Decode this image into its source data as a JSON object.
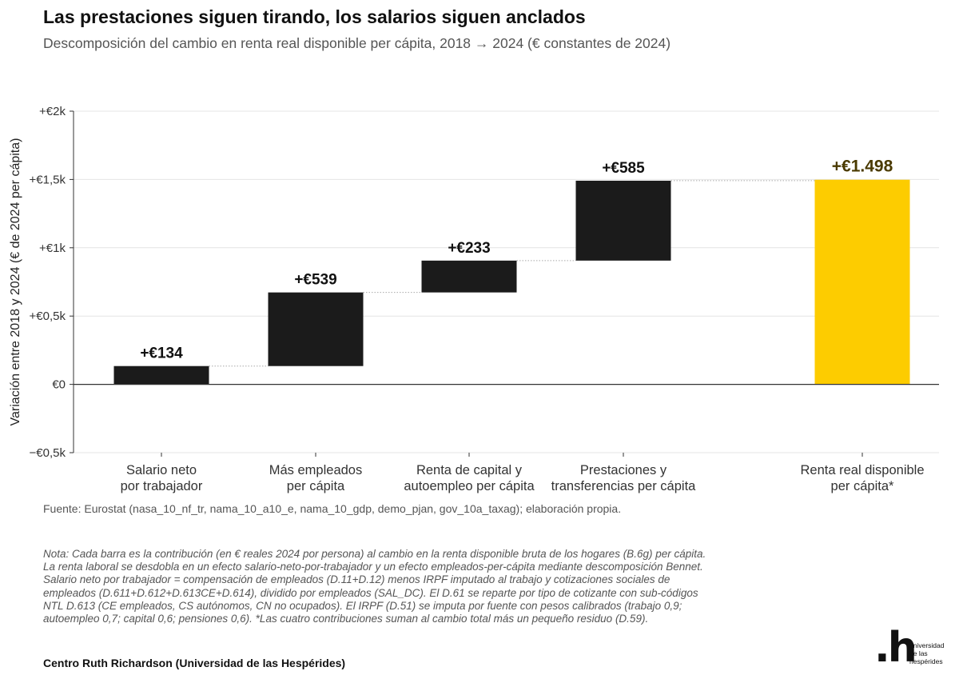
{
  "title": "Las prestaciones siguen tirando, los salarios siguen anclados",
  "subtitle": "Descomposición del cambio en renta real disponible per cápita, 2018 → 2024 (€ constantes de 2024)",
  "source": "Fuente: Eurostat (nasa_10_nf_tr, nama_10_a10_e, nama_10_gdp, demo_pjan, gov_10a_taxag); elaboración propia.",
  "note": "Nota: Cada barra es la contribución (en € reales 2024 por persona) al cambio en la renta disponible bruta de los hogares (B.6g) per cápita. La renta laboral se desdobla en un efecto salario-neto-por-trabajador y un efecto empleados-per-cápita mediante descomposición Bennet. Salario neto por trabajador = compensación de empleados (D.11+D.12) menos IRPF imputado al trabajo y cotizaciones sociales de empleados (D.611+D.612+D.613CE+D.614), dividido por empleados (SAL_DC). El D.61 se reparte por tipo de cotizante con sub-códigos NTL D.613 (CE empleados, CS autónomos, CN no ocupados). El IRPF (D.51) se imputa por fuente con pesos calibrados (trabajo 0,9; autoempleo 0,7; capital 0,6; pensiones 0,6). *Las cuatro contribuciones suman al cambio total más un pequeño residuo (D.59).",
  "organization": "Centro Ruth Richardson (Universidad de las Hespérides)",
  "logo": {
    "mark": ".h",
    "lines": [
      "universidad",
      "de las",
      "hespérides"
    ]
  },
  "colors": {
    "bar": "#1b1b1b",
    "total": "#fdcc00",
    "total_label": "#4a3a00",
    "axis": "#333333",
    "grid": "#e4e4e4",
    "connector": "#aaaaaa"
  },
  "chart_data": {
    "type": "bar",
    "subtype": "waterfall",
    "ylabel": "Variación entre 2018 y 2024 (€ de 2024 per cápita)",
    "ylim": [
      -500,
      2000
    ],
    "yticks": [
      -500,
      0,
      500,
      1000,
      1500,
      2000
    ],
    "ytick_labels": [
      "−€0,5k",
      "€0",
      "+€0,5k",
      "+€1k",
      "+€1,5k",
      "+€2k"
    ],
    "grid": true,
    "categories": [
      "Salario neto\npor trabajador",
      "Más empleados\nper cápita",
      "Renta de capital y\nautoempleo per cápita",
      "Prestaciones y\ntransferencias per cápita",
      "Renta real disponible\nper cápita*"
    ],
    "values": [
      134,
      539,
      233,
      585,
      1498
    ],
    "value_labels": [
      "+€134",
      "+€539",
      "+€233",
      "+€585",
      "+€1.498"
    ],
    "is_total": [
      false,
      false,
      false,
      false,
      true
    ]
  }
}
